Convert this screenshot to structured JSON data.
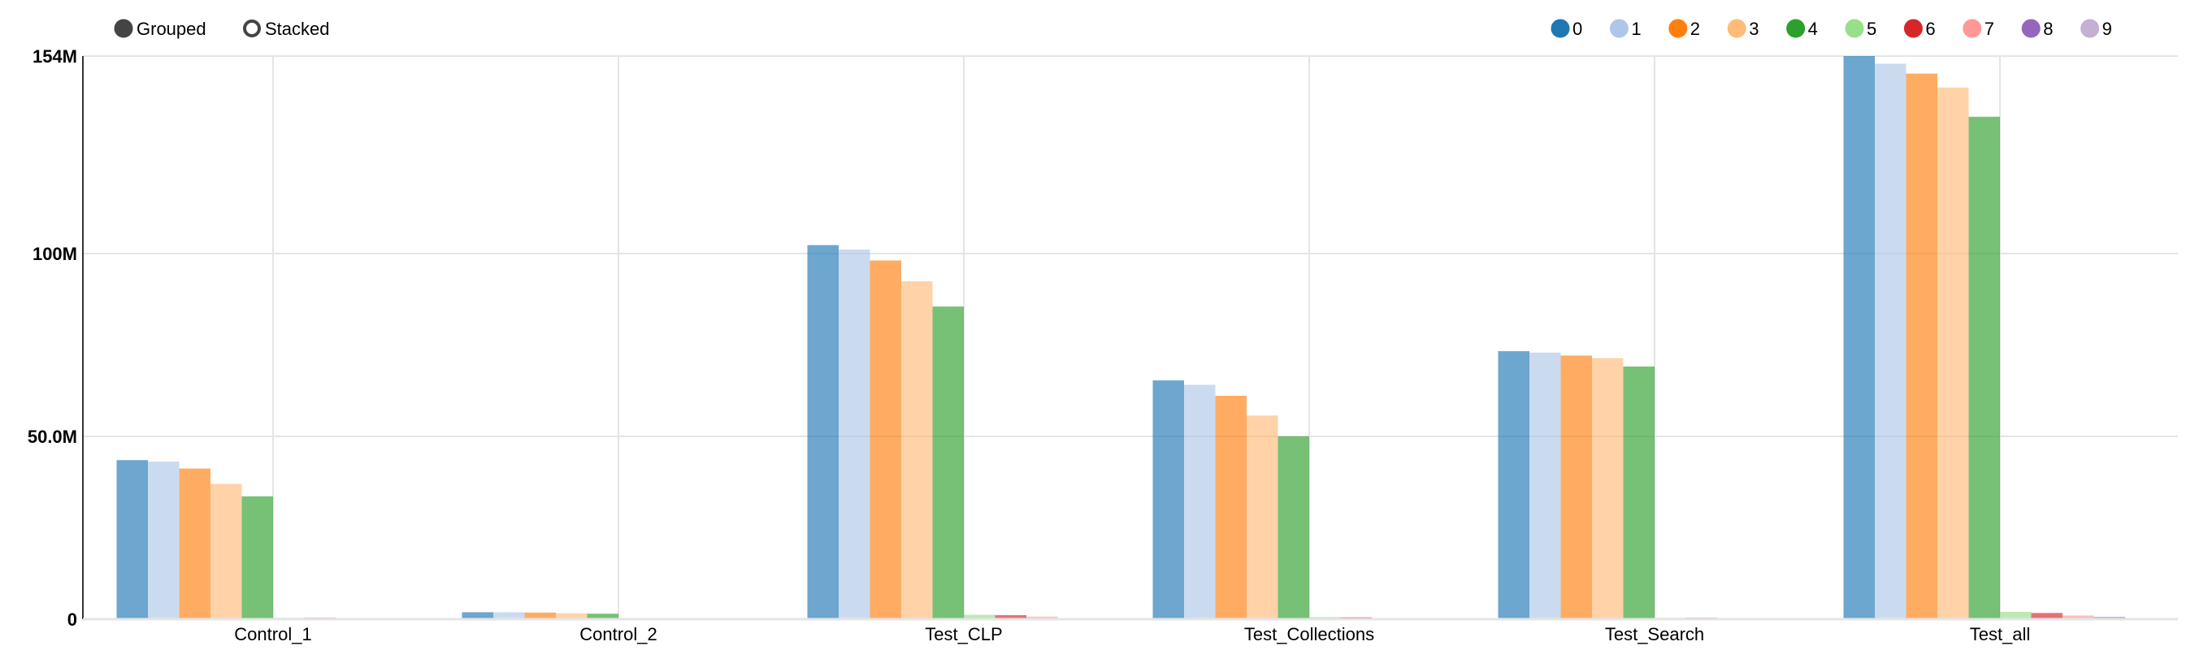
{
  "controls": {
    "grouped_label": "Grouped",
    "stacked_label": "Stacked",
    "selected": "Grouped"
  },
  "chart_data": {
    "type": "bar",
    "mode": "grouped",
    "title": "",
    "xlabel": "",
    "ylabel": "",
    "ylim": [
      0,
      154000000
    ],
    "yticks": [
      0,
      50000000,
      100000000,
      154000000
    ],
    "ytick_labels": [
      "0",
      "50.0M",
      "100M",
      "154M"
    ],
    "grid": true,
    "legend_position": "top-right",
    "categories": [
      "Control_1",
      "Control_2",
      "Test_CLP",
      "Test_Collections",
      "Test_Search",
      "Test_all"
    ],
    "series": [
      {
        "name": "0",
        "color": "#1f77b4",
        "values": [
          43500000,
          1900000,
          102300000,
          65300000,
          73300000,
          154000000
        ]
      },
      {
        "name": "1",
        "color": "#aec7e8",
        "values": [
          43100000,
          1900000,
          101100000,
          64100000,
          72900000,
          151900000
        ]
      },
      {
        "name": "2",
        "color": "#ff7f0e",
        "values": [
          41200000,
          1800000,
          98100000,
          61100000,
          72100000,
          149200000
        ]
      },
      {
        "name": "3",
        "color": "#ffbb78",
        "values": [
          37000000,
          1600000,
          92400000,
          55700000,
          71400000,
          145400000
        ]
      },
      {
        "name": "4",
        "color": "#2ca02c",
        "values": [
          33600000,
          1500000,
          85500000,
          50000000,
          69100000,
          137400000
        ]
      },
      {
        "name": "5",
        "color": "#98df8a",
        "values": [
          400000,
          100000,
          1200000,
          600000,
          400000,
          2000000
        ]
      },
      {
        "name": "6",
        "color": "#d62728",
        "values": [
          400000,
          100000,
          1100000,
          500000,
          400000,
          1700000
        ]
      },
      {
        "name": "7",
        "color": "#ff9896",
        "values": [
          300000,
          100000,
          700000,
          300000,
          300000,
          1000000
        ]
      },
      {
        "name": "8",
        "color": "#9467bd",
        "values": [
          300000,
          100000,
          300000,
          200000,
          200000,
          600000
        ]
      },
      {
        "name": "9",
        "color": "#c5b0d5",
        "values": [
          200000,
          100000,
          200000,
          100000,
          100000,
          300000
        ]
      }
    ]
  }
}
